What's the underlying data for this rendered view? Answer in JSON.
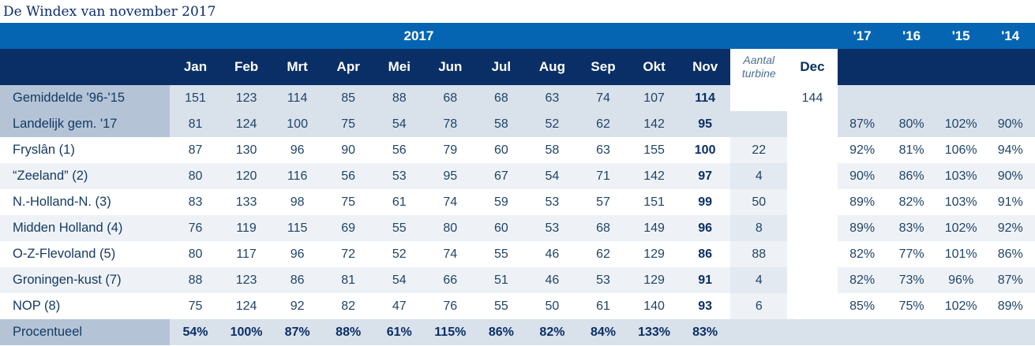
{
  "title": "De Windex van november 2017",
  "year_header": "2017",
  "pct_headers": [
    "'17",
    "'16",
    "'15",
    "'14"
  ],
  "months": [
    "Jan",
    "Feb",
    "Mrt",
    "Apr",
    "Mei",
    "Jun",
    "Jul",
    "Aug",
    "Sep",
    "Okt",
    "Nov"
  ],
  "turbine_header_line1": "Aantal",
  "turbine_header_line2": "turbine",
  "dec_header": "Dec",
  "rows": [
    {
      "label": "Gemiddelde '96-'15",
      "values": [
        "151",
        "123",
        "114",
        "85",
        "88",
        "68",
        "68",
        "63",
        "74",
        "107",
        "114"
      ],
      "turbines": "",
      "dec": "144",
      "pct": [
        "",
        "",
        "",
        ""
      ]
    },
    {
      "label": "Landelijk gem. '17",
      "values": [
        "81",
        "124",
        "100",
        "75",
        "54",
        "78",
        "58",
        "52",
        "62",
        "142",
        "95"
      ],
      "turbines": "",
      "dec": "",
      "pct": [
        "87%",
        "80%",
        "102%",
        "90%"
      ]
    },
    {
      "label": "Fryslân (1)",
      "values": [
        "87",
        "130",
        "96",
        "90",
        "56",
        "79",
        "60",
        "58",
        "63",
        "155",
        "100"
      ],
      "turbines": "22",
      "dec": "",
      "pct": [
        "92%",
        "81%",
        "106%",
        "94%"
      ]
    },
    {
      "label": "“Zeeland” (2)",
      "values": [
        "80",
        "120",
        "116",
        "56",
        "53",
        "95",
        "67",
        "54",
        "71",
        "142",
        "97"
      ],
      "turbines": "4",
      "dec": "",
      "pct": [
        "90%",
        "86%",
        "103%",
        "90%"
      ]
    },
    {
      "label": "N.-Holland-N. (3)",
      "values": [
        "83",
        "133",
        "98",
        "75",
        "61",
        "74",
        "59",
        "53",
        "57",
        "151",
        "99"
      ],
      "turbines": "50",
      "dec": "",
      "pct": [
        "89%",
        "82%",
        "103%",
        "91%"
      ]
    },
    {
      "label": "Midden Holland (4)",
      "values": [
        "76",
        "119",
        "115",
        "69",
        "55",
        "80",
        "60",
        "53",
        "68",
        "149",
        "96"
      ],
      "turbines": "8",
      "dec": "",
      "pct": [
        "89%",
        "83%",
        "102%",
        "92%"
      ]
    },
    {
      "label": "O-Z-Flevoland (5)",
      "values": [
        "80",
        "117",
        "96",
        "72",
        "52",
        "74",
        "55",
        "46",
        "62",
        "129",
        "86"
      ],
      "turbines": "88",
      "dec": "",
      "pct": [
        "82%",
        "77%",
        "101%",
        "86%"
      ]
    },
    {
      "label": "Groningen-kust (7)",
      "values": [
        "88",
        "123",
        "86",
        "81",
        "54",
        "66",
        "51",
        "46",
        "53",
        "129",
        "91"
      ],
      "turbines": "4",
      "dec": "",
      "pct": [
        "82%",
        "73%",
        "96%",
        "87%"
      ]
    },
    {
      "label": "NOP (8)",
      "values": [
        "75",
        "124",
        "92",
        "82",
        "47",
        "76",
        "55",
        "50",
        "61",
        "140",
        "93"
      ],
      "turbines": "6",
      "dec": "",
      "pct": [
        "85%",
        "75%",
        "102%",
        "89%"
      ]
    }
  ],
  "procentueel": {
    "label": "Procentueel",
    "values": [
      "54%",
      "100%",
      "87%",
      "88%",
      "61%",
      "115%",
      "86%",
      "82%",
      "84%",
      "133%",
      "83%"
    ]
  },
  "colors": {
    "header_blue": "#0565b3",
    "header_navy": "#0a2f66",
    "row_shade": "#d9e1eb",
    "label_shade": "#b4c4d6"
  }
}
